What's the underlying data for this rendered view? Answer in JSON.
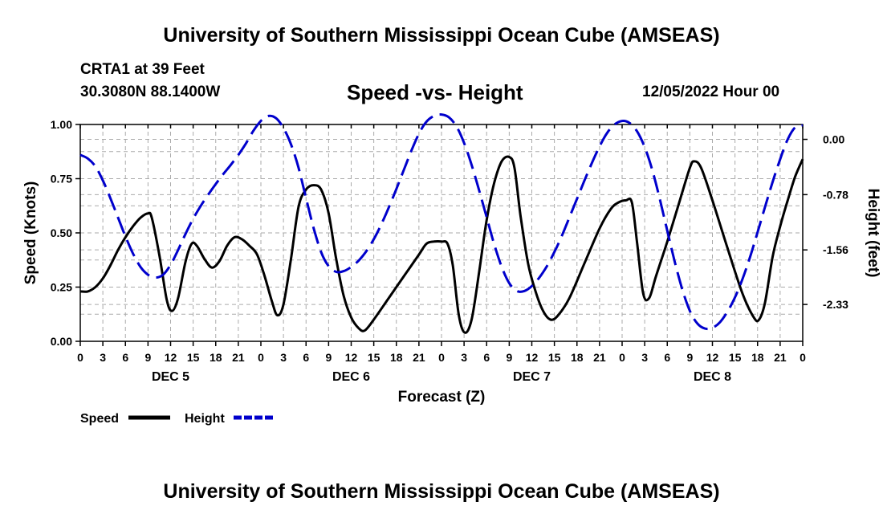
{
  "header": {
    "title": "University of Southern Mississippi Ocean Cube (AMSEAS)",
    "station": "CRTA1 at 39 Feet",
    "coordinates": "30.3080N  88.1400W",
    "subtitle": "Speed -vs- Height",
    "datetime": "12/05/2022 Hour 00"
  },
  "footer": {
    "title": "University of Southern Mississippi Ocean Cube (AMSEAS)"
  },
  "chart_data": {
    "type": "line",
    "title": "Speed -vs- Height",
    "xlabel": "Forecast (Z)",
    "ylabel": "Speed (Knots)",
    "y2label": "Height (feet)",
    "x_unit": "hours since DEC 5 00Z",
    "xlim": [
      0,
      96
    ],
    "ylim": [
      0,
      1
    ],
    "y2lim": [
      -2.85,
      0.21
    ],
    "x_ticks": [
      0,
      3,
      6,
      9,
      12,
      15,
      18,
      21,
      24,
      27,
      30,
      33,
      36,
      39,
      42,
      45,
      48,
      51,
      54,
      57,
      60,
      63,
      66,
      69,
      72,
      75,
      78,
      81,
      84,
      87,
      90,
      93,
      96
    ],
    "x_tick_labels": [
      "0",
      "3",
      "6",
      "9",
      "12",
      "15",
      "18",
      "21",
      "0",
      "3",
      "6",
      "9",
      "12",
      "15",
      "18",
      "21",
      "0",
      "3",
      "6",
      "9",
      "12",
      "15",
      "18",
      "21",
      "0",
      "3",
      "6",
      "9",
      "12",
      "15",
      "18",
      "21",
      "0"
    ],
    "day_labels": [
      {
        "x": 12,
        "label": "DEC 5"
      },
      {
        "x": 36,
        "label": "DEC 6"
      },
      {
        "x": 60,
        "label": "DEC 7"
      },
      {
        "x": 84,
        "label": "DEC 8"
      }
    ],
    "y_ticks": [
      0.0,
      0.25,
      0.5,
      0.75,
      1.0
    ],
    "y_tick_labels": [
      "0.00",
      "0.25",
      "0.50",
      "0.75",
      "1.00"
    ],
    "y2_ticks": [
      0.0,
      -0.78,
      -1.56,
      -2.33
    ],
    "y2_tick_labels": [
      "0.00",
      "-0.78",
      "-1.56",
      "-2.33"
    ],
    "legend": [
      {
        "label": "Speed",
        "color": "#000000",
        "style": "solid"
      },
      {
        "label": "Height",
        "color": "#0000cc",
        "style": "dashed"
      }
    ],
    "series": [
      {
        "name": "Speed",
        "axis": "left",
        "color": "#000000",
        "style": "solid",
        "points": [
          [
            0,
            0.23
          ],
          [
            1,
            0.23
          ],
          [
            2,
            0.25
          ],
          [
            3,
            0.29
          ],
          [
            4,
            0.35
          ],
          [
            5,
            0.42
          ],
          [
            6,
            0.48
          ],
          [
            7,
            0.53
          ],
          [
            8,
            0.57
          ],
          [
            9,
            0.59
          ],
          [
            9.5,
            0.57
          ],
          [
            10.5,
            0.4
          ],
          [
            11.5,
            0.19
          ],
          [
            12.2,
            0.14
          ],
          [
            13,
            0.2
          ],
          [
            14,
            0.37
          ],
          [
            14.8,
            0.45
          ],
          [
            15.5,
            0.44
          ],
          [
            16.5,
            0.38
          ],
          [
            17.5,
            0.34
          ],
          [
            18.5,
            0.37
          ],
          [
            19.5,
            0.44
          ],
          [
            20.5,
            0.48
          ],
          [
            21.5,
            0.47
          ],
          [
            22.5,
            0.44
          ],
          [
            23.5,
            0.4
          ],
          [
            24.5,
            0.3
          ],
          [
            25.5,
            0.18
          ],
          [
            26.2,
            0.12
          ],
          [
            27,
            0.17
          ],
          [
            28,
            0.38
          ],
          [
            29,
            0.62
          ],
          [
            30,
            0.7
          ],
          [
            31,
            0.72
          ],
          [
            32,
            0.7
          ],
          [
            33,
            0.59
          ],
          [
            34,
            0.38
          ],
          [
            35,
            0.21
          ],
          [
            36,
            0.11
          ],
          [
            37,
            0.06
          ],
          [
            37.8,
            0.05
          ],
          [
            39,
            0.1
          ],
          [
            41,
            0.2
          ],
          [
            43,
            0.3
          ],
          [
            45,
            0.4
          ],
          [
            46,
            0.45
          ],
          [
            47,
            0.46
          ],
          [
            48,
            0.46
          ],
          [
            48.8,
            0.45
          ],
          [
            49.5,
            0.35
          ],
          [
            50.3,
            0.12
          ],
          [
            51.1,
            0.04
          ],
          [
            52,
            0.1
          ],
          [
            53,
            0.32
          ],
          [
            54,
            0.56
          ],
          [
            55,
            0.73
          ],
          [
            56,
            0.83
          ],
          [
            57,
            0.85
          ],
          [
            57.7,
            0.8
          ],
          [
            58.5,
            0.58
          ],
          [
            59.5,
            0.36
          ],
          [
            60.5,
            0.23
          ],
          [
            61.5,
            0.14
          ],
          [
            62.5,
            0.1
          ],
          [
            63.5,
            0.12
          ],
          [
            65,
            0.2
          ],
          [
            67,
            0.36
          ],
          [
            69,
            0.52
          ],
          [
            70.5,
            0.61
          ],
          [
            71.5,
            0.64
          ],
          [
            72.5,
            0.65
          ],
          [
            73.3,
            0.64
          ],
          [
            74,
            0.45
          ],
          [
            74.8,
            0.22
          ],
          [
            75.6,
            0.2
          ],
          [
            76.5,
            0.3
          ],
          [
            78,
            0.46
          ],
          [
            79.5,
            0.63
          ],
          [
            81,
            0.8
          ],
          [
            81.6,
            0.83
          ],
          [
            82.5,
            0.8
          ],
          [
            84,
            0.65
          ],
          [
            86,
            0.43
          ],
          [
            88,
            0.22
          ],
          [
            89.5,
            0.11
          ],
          [
            90.2,
            0.1
          ],
          [
            91,
            0.18
          ],
          [
            92,
            0.39
          ],
          [
            93,
            0.53
          ],
          [
            94,
            0.65
          ],
          [
            95,
            0.76
          ],
          [
            96,
            0.84
          ]
        ]
      },
      {
        "name": "Height",
        "axis": "right",
        "color": "#0000cc",
        "style": "dashed",
        "points": [
          [
            0,
            -0.22
          ],
          [
            1,
            -0.27
          ],
          [
            2,
            -0.38
          ],
          [
            3,
            -0.58
          ],
          [
            4,
            -0.83
          ],
          [
            5,
            -1.1
          ],
          [
            6,
            -1.37
          ],
          [
            7,
            -1.61
          ],
          [
            8,
            -1.8
          ],
          [
            9,
            -1.91
          ],
          [
            10,
            -1.95
          ],
          [
            11,
            -1.91
          ],
          [
            12,
            -1.77
          ],
          [
            13,
            -1.56
          ],
          [
            14,
            -1.33
          ],
          [
            15,
            -1.12
          ],
          [
            16,
            -0.94
          ],
          [
            17,
            -0.78
          ],
          [
            18,
            -0.63
          ],
          [
            19,
            -0.49
          ],
          [
            20,
            -0.36
          ],
          [
            21,
            -0.22
          ],
          [
            22,
            -0.06
          ],
          [
            23,
            0.12
          ],
          [
            24,
            0.26
          ],
          [
            25,
            0.33
          ],
          [
            26,
            0.3
          ],
          [
            27,
            0.16
          ],
          [
            28,
            -0.07
          ],
          [
            29,
            -0.4
          ],
          [
            30,
            -0.83
          ],
          [
            31,
            -1.25
          ],
          [
            32,
            -1.59
          ],
          [
            33,
            -1.79
          ],
          [
            34,
            -1.87
          ],
          [
            35,
            -1.86
          ],
          [
            36,
            -1.8
          ],
          [
            37,
            -1.71
          ],
          [
            38,
            -1.58
          ],
          [
            39,
            -1.41
          ],
          [
            40,
            -1.2
          ],
          [
            41,
            -0.96
          ],
          [
            42,
            -0.7
          ],
          [
            43,
            -0.43
          ],
          [
            44,
            -0.16
          ],
          [
            45,
            0.08
          ],
          [
            46,
            0.25
          ],
          [
            47,
            0.33
          ],
          [
            48,
            0.35
          ],
          [
            49,
            0.31
          ],
          [
            50,
            0.18
          ],
          [
            51,
            -0.05
          ],
          [
            52,
            -0.36
          ],
          [
            53,
            -0.72
          ],
          [
            54,
            -1.1
          ],
          [
            55,
            -1.48
          ],
          [
            56,
            -1.8
          ],
          [
            57,
            -2.03
          ],
          [
            58,
            -2.14
          ],
          [
            59,
            -2.14
          ],
          [
            60,
            -2.07
          ],
          [
            61,
            -1.95
          ],
          [
            62,
            -1.79
          ],
          [
            63,
            -1.59
          ],
          [
            64,
            -1.36
          ],
          [
            65,
            -1.1
          ],
          [
            66,
            -0.84
          ],
          [
            67,
            -0.58
          ],
          [
            68,
            -0.33
          ],
          [
            69,
            -0.1
          ],
          [
            70,
            0.09
          ],
          [
            71,
            0.21
          ],
          [
            72,
            0.26
          ],
          [
            73,
            0.23
          ],
          [
            74,
            0.11
          ],
          [
            75,
            -0.11
          ],
          [
            76,
            -0.43
          ],
          [
            77,
            -0.84
          ],
          [
            78,
            -1.29
          ],
          [
            79,
            -1.73
          ],
          [
            80,
            -2.12
          ],
          [
            81,
            -2.42
          ],
          [
            82,
            -2.6
          ],
          [
            83,
            -2.67
          ],
          [
            84,
            -2.66
          ],
          [
            85,
            -2.58
          ],
          [
            86,
            -2.43
          ],
          [
            87,
            -2.23
          ],
          [
            88,
            -1.97
          ],
          [
            89,
            -1.66
          ],
          [
            90,
            -1.31
          ],
          [
            91,
            -0.95
          ],
          [
            92,
            -0.6
          ],
          [
            93,
            -0.28
          ],
          [
            94,
            0.0
          ],
          [
            95,
            0.17
          ],
          [
            96,
            0.2
          ]
        ]
      }
    ]
  }
}
